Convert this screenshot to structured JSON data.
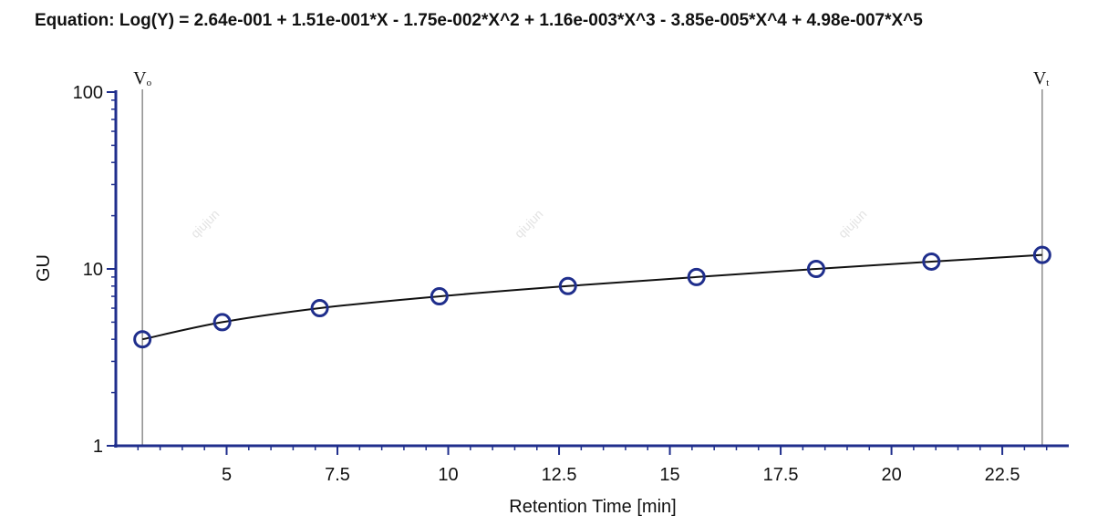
{
  "chart_data": {
    "type": "scatter",
    "title": "Equation: Log(Y) = 2.64e-001 + 1.51e-001*X - 1.75e-002*X^2 + 1.16e-003*X^3 - 3.85e-005*X^4 + 4.98e-007*X^5",
    "xlabel": "Retention Time [min]",
    "ylabel": "GU",
    "xlim": [
      2.5,
      24.0
    ],
    "ylim": [
      1,
      100
    ],
    "yscale": "log",
    "grid": false,
    "xticks": [
      5,
      7.5,
      10,
      12.5,
      15,
      17.5,
      20,
      22.5
    ],
    "xtick_labels": [
      "5",
      "7.5",
      "10",
      "12.5",
      "15",
      "17.5",
      "20",
      "22.5"
    ],
    "yticks": [
      1,
      10,
      100
    ],
    "ytick_labels": [
      "1",
      "10",
      "100"
    ],
    "points": {
      "x": [
        3.1,
        4.9,
        7.1,
        9.8,
        12.7,
        15.6,
        18.3,
        20.9,
        23.4
      ],
      "y": [
        4,
        5,
        6,
        7,
        8,
        9,
        10,
        11,
        12
      ]
    },
    "fit_curve": {
      "x": [
        3.1,
        4.9,
        7.1,
        9.8,
        12.7,
        15.6,
        18.3,
        20.9,
        23.4
      ],
      "y": [
        4,
        5,
        6,
        7,
        8,
        9,
        10,
        11,
        12
      ]
    },
    "markers": [
      {
        "x": 3.1,
        "label": "V",
        "sub": "o"
      },
      {
        "x": 23.4,
        "label": "V",
        "sub": "t"
      }
    ]
  },
  "watermark_text": "qiujun",
  "colors": {
    "point_stroke": "#1f2e8c",
    "axis": "#1f2e8c",
    "curve": "#111111",
    "marker_line": "#8c8c8c"
  }
}
